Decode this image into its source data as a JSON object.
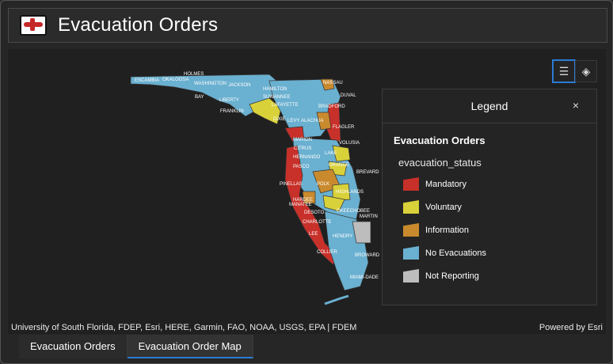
{
  "header": {
    "title": "Evacuation Orders"
  },
  "map": {
    "attribution": "University of South Florida, FDEP, Esri, HERE, Garmin, FAO, NOAA, USGS, EPA | FDEM",
    "powered_by": "Powered by Esri",
    "county_labels": [
      "ESCAMBIA",
      "OKALOOSA",
      "HOLMES",
      "WASHINGTON",
      "JACKSON",
      "BAY",
      "LIBERTY",
      "FRANKLIN",
      "HAMILTON",
      "SUWANNEE",
      "LAFAYETTE",
      "LEVY",
      "MARION",
      "CITRUS",
      "HERNANDO",
      "PASCO",
      "PINELLAS",
      "POLK",
      "HARDEE",
      "DESOTO",
      "CHARLOTTE",
      "LEE",
      "COLLIER",
      "HENDRY",
      "BROWARD",
      "MIAMI-DADE",
      "OKEECHOBEE",
      "MARTIN",
      "BREVARD",
      "ORANGE",
      "LAKE",
      "VOLUSIA",
      "FLAGLER",
      "DUVAL",
      "NASSAU",
      "ALACHUA",
      "BRADFORD",
      "DIXIE",
      "HIGHLANDS",
      "MANATEE"
    ]
  },
  "tools": {
    "legend_icon": "legend-list-icon",
    "layers_icon": "layers-icon"
  },
  "legend": {
    "title": "Legend",
    "close_label": "×",
    "layer_title": "Evacuation Orders",
    "field_name": "evacuation_status",
    "items": [
      {
        "label": "Mandatory",
        "color": "#c8302a"
      },
      {
        "label": "Voluntary",
        "color": "#d9d13a"
      },
      {
        "label": "Information",
        "color": "#c98a2e"
      },
      {
        "label": "No Evacuations",
        "color": "#6ab0d0"
      },
      {
        "label": "Not Reporting",
        "color": "#bdbdbd"
      }
    ]
  },
  "tabs": [
    {
      "label": "Evacuation Orders",
      "active": false
    },
    {
      "label": "Evacuation Order Map",
      "active": true
    }
  ]
}
